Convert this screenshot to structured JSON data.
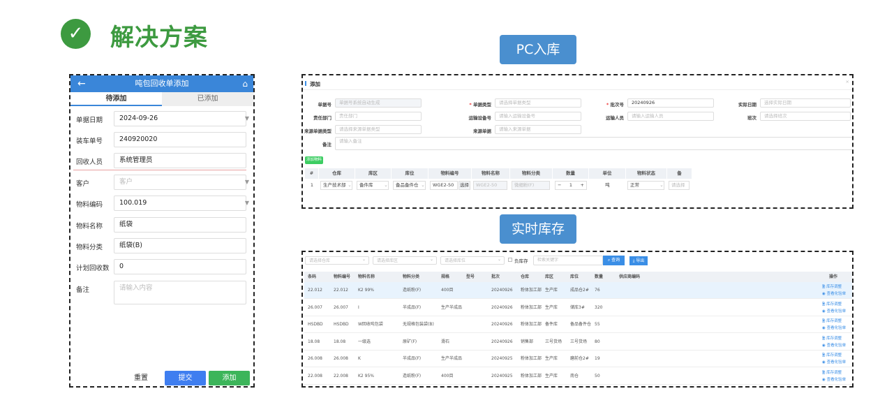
{
  "header": {
    "title": "解决方案",
    "check_icon": "check-circle-icon",
    "accent": "#3d9a40"
  },
  "labels": {
    "pc_inbound": "PC入库",
    "realtime_stock": "实时库存"
  },
  "mobile": {
    "title": "吨包回收单添加",
    "tabs": [
      "待添加",
      "已添加"
    ],
    "fields": [
      {
        "label": "单据日期",
        "value": "2024-09-26",
        "dropdown": true
      },
      {
        "label": "装车单号",
        "value": "240920020"
      },
      {
        "label": "回收人员",
        "value": "系统管理员"
      },
      {
        "label": "客户",
        "placeholder": "客户",
        "dropdown": true
      },
      {
        "label": "物料编码",
        "value": "100.019",
        "dropdown": true
      },
      {
        "label": "物料名称",
        "value": "纸袋"
      },
      {
        "label": "物料分类",
        "value": "纸袋(B)"
      },
      {
        "label": "计划回收数",
        "value": "0"
      },
      {
        "label": "备注",
        "placeholder": "请输入内容"
      }
    ],
    "buttons": {
      "reset": "重置",
      "submit": "提交",
      "add": "添加"
    }
  },
  "pc": {
    "dialog_title": "添加",
    "form": [
      {
        "label": "单据号",
        "placeholder": "单据号系统自动生成"
      },
      {
        "label": "单据类型",
        "placeholder": "请选择单据类型",
        "required": true
      },
      {
        "label": "批次号",
        "value": "20240926",
        "required": true
      },
      {
        "label": "实际日期",
        "placeholder": "选择实际日期"
      },
      {
        "label": "责任部门",
        "placeholder": "责任部门"
      },
      {
        "label": "运输设备号",
        "placeholder": "请输入运输设备号"
      },
      {
        "label": "运输人员",
        "placeholder": "请输入运输人员"
      },
      {
        "label": "班次",
        "placeholder": "请选择班次"
      },
      {
        "label": "来源单据类型",
        "placeholder": "请选择来源单据类型"
      },
      {
        "label": "来源单据",
        "placeholder": "请输入来源单据"
      },
      {
        "label": "备注",
        "placeholder": "请输入备注"
      }
    ],
    "add_material": "添加物料",
    "columns": [
      "#",
      "仓库",
      "库区",
      "库位",
      "物料编号",
      "物料名称",
      "物料分类",
      "数量",
      "单位",
      "物料状态",
      "备"
    ],
    "row": {
      "no": "1",
      "warehouse": "生产技术部",
      "area": "备件库",
      "location": "备品备件仓",
      "code": "WGE2-50",
      "select": "选择",
      "name": "WGE2-50",
      "category": "微细粉(F)",
      "qty": "1",
      "unit": "吨",
      "status": "正常",
      "extra": "请选择"
    }
  },
  "inventory": {
    "filters": {
      "warehouse": "请选择仓库",
      "area": "请选择库区",
      "location": "请选择库位",
      "negative": "负库存",
      "search": "检索关键字",
      "query": "查询",
      "export": "导出"
    },
    "columns": [
      "条码",
      "物料编号",
      "物料名称",
      "物料分类",
      "规格",
      "型号",
      "批次",
      "仓库",
      "库区",
      "库位",
      "数量",
      "供应商编码",
      "操作"
    ],
    "rows": [
      [
        "22.012",
        "22.012",
        "K2 99%",
        "造纸粉(F)",
        "400目",
        "",
        "20240926",
        "粉体加工部",
        "生产库",
        "成品仓2#",
        "76",
        ""
      ],
      [
        "26.007",
        "26.007",
        "I",
        "半成品(F)",
        "生产半成品",
        "",
        "20240926",
        "粉体加工部",
        "生产库",
        "储库3#",
        "320",
        ""
      ],
      [
        "HSDBD",
        "HSDBD",
        "W回收吨包袋",
        "无规格包装袋(B)",
        "",
        "",
        "20240926",
        "粉体加工部",
        "备件库",
        "备品备件仓",
        "55",
        ""
      ],
      [
        "18.08",
        "18.08",
        "一级选",
        "原矿(F)",
        "滑石",
        "",
        "20240926",
        "销售部",
        "三号货场",
        "三号货场",
        "80",
        ""
      ],
      [
        "26.008",
        "26.008",
        "K",
        "半成品(F)",
        "生产半成品",
        "",
        "20240925",
        "粉体加工部",
        "生产库",
        "磨前仓2#",
        "19",
        ""
      ],
      [
        "22.008",
        "22.008",
        "K2 95%",
        "造纸粉(F)",
        "400目",
        "",
        "20240925",
        "粉体加工部",
        "生产库",
        "南仓",
        "50",
        ""
      ]
    ],
    "actions": [
      "库存调整",
      "查看化验单"
    ]
  }
}
